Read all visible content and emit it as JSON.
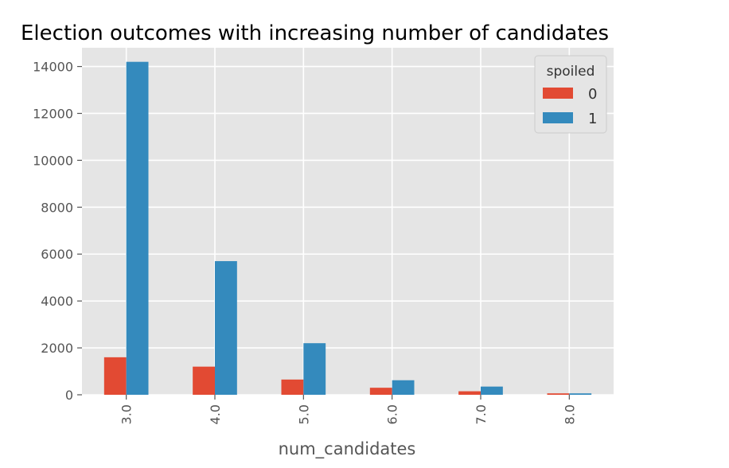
{
  "chart_data": {
    "type": "bar",
    "title": "Election outcomes with increasing number of candidates",
    "xlabel": "num_candidates",
    "ylabel": "",
    "categories": [
      "3.0",
      "4.0",
      "5.0",
      "6.0",
      "7.0",
      "8.0"
    ],
    "series": [
      {
        "name": "0",
        "color": "#E24A33",
        "values": [
          1600,
          1200,
          650,
          300,
          150,
          60
        ]
      },
      {
        "name": "1",
        "color": "#348ABD",
        "values": [
          14200,
          5700,
          2200,
          620,
          350,
          60
        ]
      }
    ],
    "ylim": [
      0,
      14800
    ],
    "yticks": [
      0,
      2000,
      4000,
      6000,
      8000,
      10000,
      12000,
      14000
    ],
    "ytick_labels": [
      "0",
      "2000",
      "4000",
      "6000",
      "8000",
      "10000",
      "12000",
      "14000"
    ],
    "legend": {
      "title": "spoiled",
      "position": "top-right"
    },
    "grid": true,
    "background": "#E5E5E5"
  }
}
